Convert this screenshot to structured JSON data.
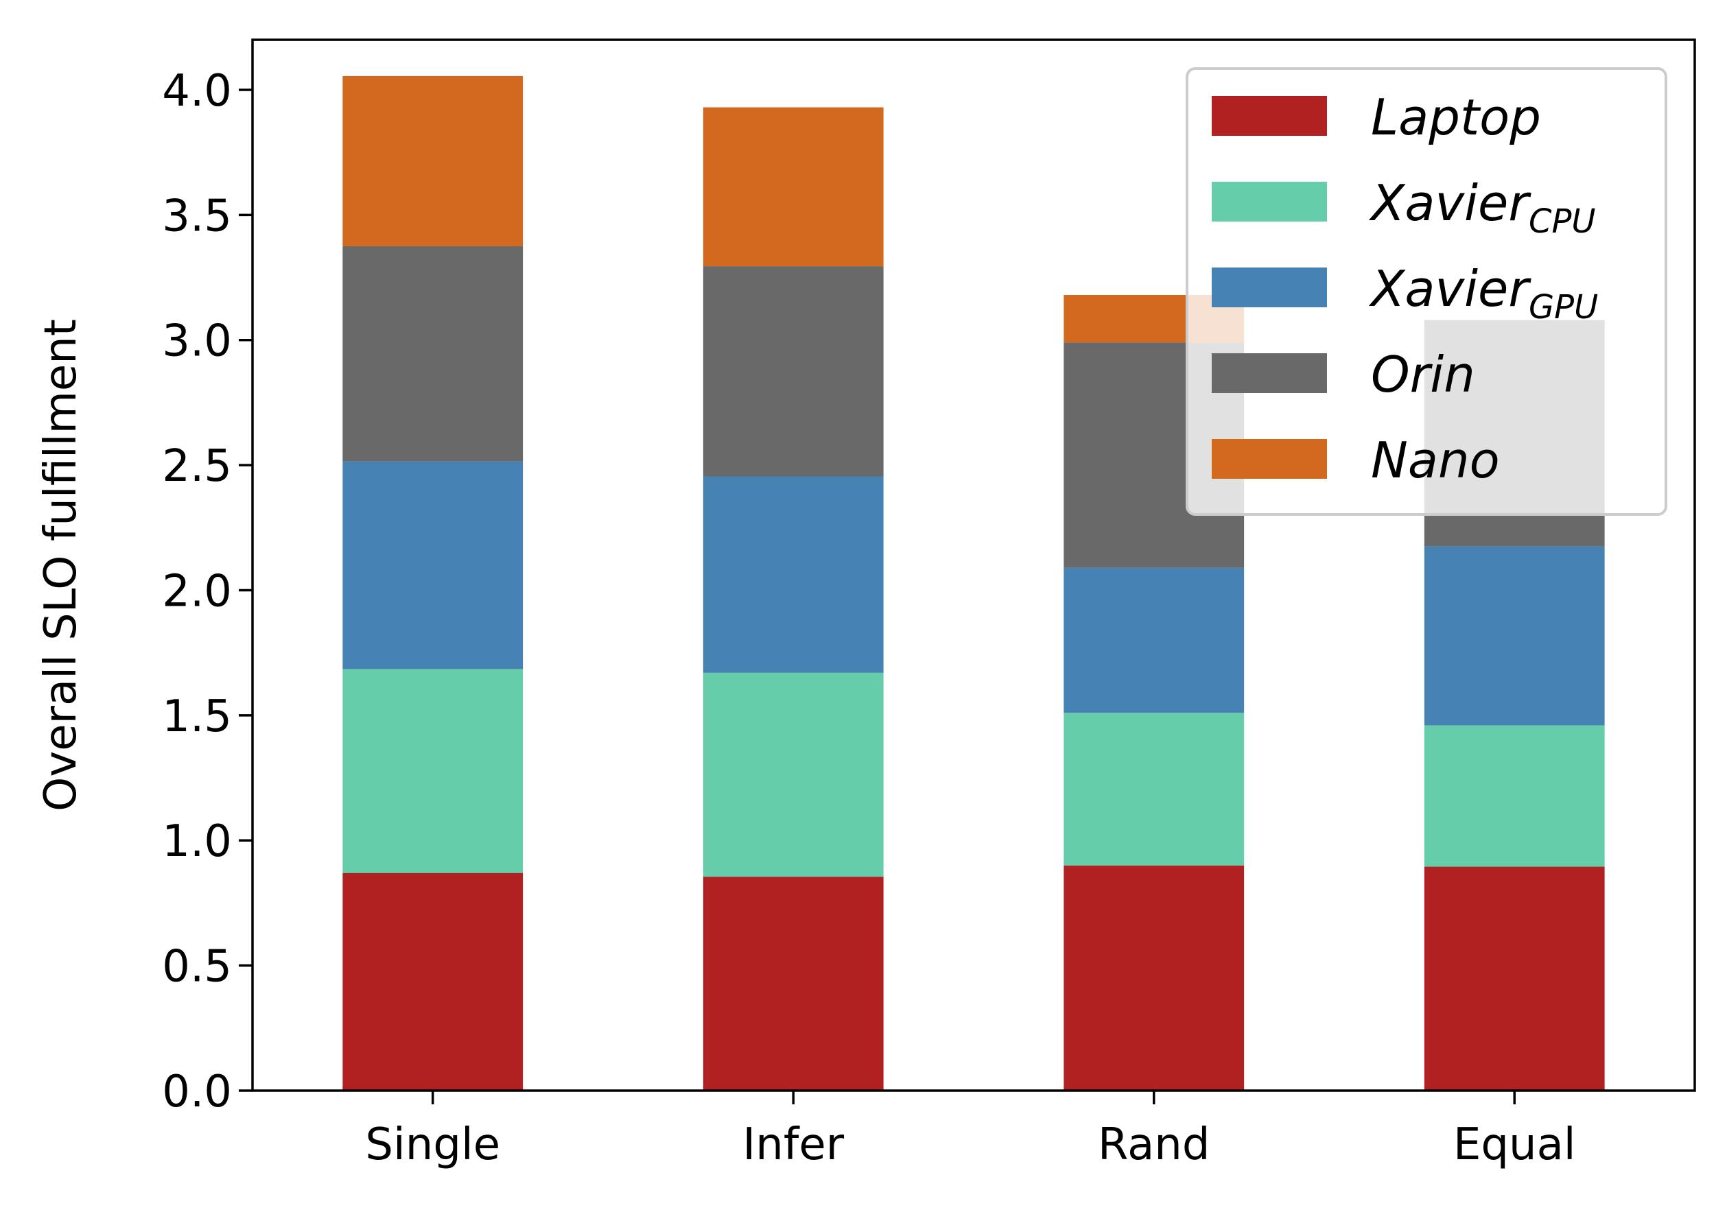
{
  "chart_data": {
    "type": "bar",
    "stacked": true,
    "categories": [
      "Single",
      "Infer",
      "Rand",
      "Equal"
    ],
    "ylabel": "Overall SLO fulfillment",
    "ylim": [
      0,
      4.2
    ],
    "yticks": [
      "0.0",
      "0.5",
      "1.0",
      "1.5",
      "2.0",
      "2.5",
      "3.0",
      "3.5",
      "4.0"
    ],
    "legend_position": "top-right",
    "grid": false,
    "series": [
      {
        "name": "Laptop",
        "sub": "",
        "color": "#b22122",
        "values": [
          0.87,
          0.855,
          0.9,
          0.895
        ]
      },
      {
        "name": "Xavier",
        "sub": "CPU",
        "color": "#66cdaa",
        "values": [
          0.815,
          0.815,
          0.61,
          0.565
        ]
      },
      {
        "name": "Xavier",
        "sub": "GPU",
        "color": "#4682b4",
        "values": [
          0.83,
          0.785,
          0.58,
          0.715
        ]
      },
      {
        "name": "Orin",
        "sub": "",
        "color": "#696969",
        "values": [
          0.86,
          0.84,
          0.9,
          0.905
        ]
      },
      {
        "name": "Nano",
        "sub": "",
        "color": "#d2691e",
        "values": [
          0.68,
          0.635,
          0.19,
          0.0
        ]
      }
    ]
  }
}
